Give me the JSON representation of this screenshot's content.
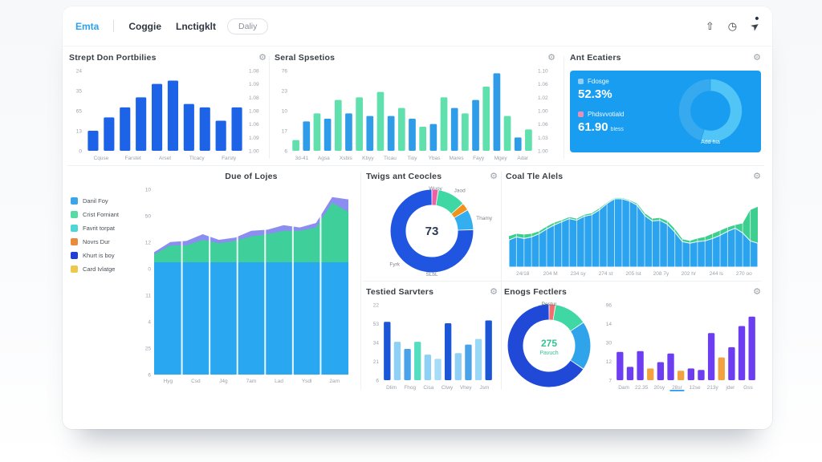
{
  "nav": {
    "tabs": [
      {
        "label": "Emta",
        "active": true
      },
      {
        "label": "Coggie",
        "active": false
      },
      {
        "label": "Lnctigklt",
        "active": false
      }
    ],
    "pill": "Daliy",
    "icons": [
      {
        "name": "share-icon",
        "glyph": "⇧",
        "dot": false
      },
      {
        "name": "history-icon",
        "glyph": "◷",
        "dot": false
      },
      {
        "name": "cursor-icon",
        "glyph": "➤",
        "dot": true
      }
    ]
  },
  "ui": {
    "gear_glyph": "⚙"
  },
  "panels": {
    "strept": {
      "title": "Strept Don Portbilies",
      "chart": {
        "type": "bar",
        "max": 24,
        "values": [
          6,
          10,
          13,
          16,
          20,
          21,
          14,
          13,
          9,
          13
        ],
        "colors": [
          "#1d63e8"
        ],
        "leftTicks": [
          "24",
          "35",
          "65",
          "13",
          "0"
        ],
        "rightTicks": [
          "1.08",
          "1.09",
          "1.08",
          "1.08",
          "1.06",
          "1.09",
          "1.00"
        ],
        "xLabels": [
          "Cquse",
          "Farstet",
          "Arset",
          "Tlcacy",
          "Farsty"
        ]
      }
    },
    "seral": {
      "title": "Seral Spsetios",
      "chart": {
        "type": "bar",
        "max": 30,
        "values": [
          4,
          11,
          14,
          12,
          19,
          14,
          20,
          13,
          22,
          13,
          16,
          12,
          9,
          10,
          20,
          16,
          14,
          19,
          24,
          29,
          13,
          5,
          8
        ],
        "colors": [
          "#5fe0ad",
          "#2f9ce9"
        ],
        "leftTicks": [
          "76",
          "23",
          "10",
          "17",
          "6"
        ],
        "rightTicks": [
          "1.10",
          "1.06",
          "1.02",
          "1.00",
          "1.06",
          "1.03",
          "1.00"
        ],
        "xLabels": [
          "3d-41",
          "Agsa",
          "Xsbis",
          "Kbyy",
          "Tlcau",
          "Tioy",
          "Ybas",
          "Mares",
          "Fayy",
          "Mgey",
          "Adar"
        ]
      }
    },
    "ant": {
      "title": "Ant Ecatiers",
      "card": {
        "bg": "#189df1",
        "stat1_label": "Fdosge",
        "stat1_value": "52.3%",
        "stat1_sq": "rgba(255,255,255,0.55)",
        "stat2_label": "Phdsvvotiald",
        "stat2_value": "61.90",
        "stat2_suffix": "bless",
        "stat2_sq": "#f48fb1",
        "donut_caption": "Add hia",
        "donut": {
          "type": "donut",
          "segments": [
            {
              "value": 55,
              "color": "#52c5f7",
              "label": ""
            },
            {
              "value": 45,
              "color": "#37a9ee",
              "label": ""
            }
          ]
        }
      }
    },
    "due": {
      "title": "Due of Lojes",
      "legend": [
        {
          "label": "Danil Foy",
          "color": "#3aa5e8"
        },
        {
          "label": "Crist Forniant",
          "color": "#57dba5"
        },
        {
          "label": "Favrit torpat",
          "color": "#4fd6d6"
        },
        {
          "label": "Novrs Dur",
          "color": "#ea8a3c"
        },
        {
          "label": "Khurt is boy",
          "color": "#1f3fd8"
        },
        {
          "label": "Card Ivlatge",
          "color": "#ecc94b"
        }
      ],
      "chart": {
        "type": "area",
        "max": 16.5,
        "yTicks": [
          "10",
          "50",
          "12",
          "0",
          "11",
          "4",
          "25",
          "6"
        ],
        "xLabels": [
          "Hyg",
          "Csd",
          "J4g",
          "7am",
          "Lad",
          "Ysdl",
          "2am"
        ],
        "vlines": "slots",
        "layers": [
          {
            "name": "purple",
            "color": "#8b8df0",
            "values": [
              10.9,
              11.8,
              11.9,
              12.5,
              12.0,
              12.2,
              12.8,
              12.9,
              13.3,
              13.1,
              13.5,
              15.8,
              15.6
            ]
          },
          {
            "name": "green",
            "color": "#3ecf9a",
            "values": [
              10.7,
              11.5,
              11.5,
              12.0,
              11.7,
              11.9,
              12.3,
              12.5,
              12.8,
              12.8,
              13.1,
              15.3,
              14.5
            ]
          },
          {
            "name": "blue",
            "color": "#29a7f0",
            "values": [
              10,
              10,
              10,
              10,
              10,
              10,
              10,
              10,
              10,
              10,
              10,
              10,
              10
            ]
          }
        ]
      }
    },
    "twigs": {
      "title": "Twigs ant Ceocles",
      "chart": {
        "type": "donut",
        "center_value": "73",
        "center_color": "#2b3a55",
        "bottom_label": "SLbL",
        "segments": [
          {
            "value": 2.5,
            "color": "#ee5fa8",
            "label": "Wuoy"
          },
          {
            "value": 11,
            "color": "#3fd8a4",
            "label": "Jaod"
          },
          {
            "value": 3,
            "color": "#f2921d",
            "label": ""
          },
          {
            "value": 8,
            "color": "#35aef0",
            "label": "Thamy"
          },
          {
            "value": 75.5,
            "color": "#1f55e0",
            "label": "Fyrk"
          }
        ]
      }
    },
    "coal": {
      "title": "Coal Tle Alels",
      "chart": {
        "type": "area",
        "max": 10,
        "xLabels": [
          "24/18",
          "204 M",
          "234 sy",
          "274 st",
          "205 lst",
          "208 7y",
          "202 hr",
          "244 ls",
          "270 oo"
        ],
        "vlines": "dense",
        "layers": [
          {
            "name": "green",
            "color": "#3ecf90",
            "values": [
              3.9,
              4.2,
              4.1,
              4.2,
              4.5,
              5.1,
              5.6,
              5.9,
              6.3,
              6.1,
              6.6,
              6.8,
              7.4,
              8.1,
              8.7,
              8.7,
              8.4,
              8.0,
              6.8,
              6.1,
              6.2,
              5.8,
              4.8,
              3.5,
              3.3,
              3.6,
              3.8,
              4.2,
              4.6,
              5.0,
              5.3,
              5.5,
              7.2,
              7.6
            ]
          },
          {
            "name": "blue",
            "color": "#2ba3ef",
            "stroke": "#ffffff",
            "values": [
              3.4,
              3.8,
              3.6,
              3.8,
              4.2,
              4.8,
              5.3,
              5.7,
              6.1,
              5.9,
              6.4,
              6.6,
              7.2,
              8.0,
              8.6,
              8.6,
              8.3,
              7.8,
              6.5,
              5.8,
              5.9,
              5.4,
              4.4,
              3.2,
              3.0,
              3.2,
              3.3,
              3.6,
              4.0,
              4.5,
              4.9,
              4.3,
              3.3,
              3.0
            ]
          }
        ]
      }
    },
    "tested": {
      "title": "Testied Sarvters",
      "chart": {
        "type": "bar",
        "max": 53,
        "values": [
          41,
          27,
          22,
          27,
          18,
          15,
          40,
          19,
          25,
          29,
          42
        ],
        "colors": [
          "#1b56d6",
          "#8fd0f6",
          "#4aa3e8",
          "#55dec0",
          "#8fd0f6",
          "#a5ddf8",
          "#1b56d6",
          "#8fd0f6",
          "#4aa3e8",
          "#9bd7f7",
          "#1b56d6"
        ],
        "leftTicks": [
          "22",
          "53",
          "34",
          "21",
          "6"
        ],
        "xLabels": [
          "Dlim",
          "Fhog",
          "Cisa",
          "Ctwy",
          "Vhey",
          "Jsm"
        ]
      }
    },
    "enogs": {
      "title": "Enogs Fectlers",
      "chart": {
        "type": "donut",
        "top_label": "Pestur",
        "center_value": "275",
        "center_sub": "Pavuch",
        "center_color": "#35c391",
        "segments": [
          {
            "value": 2.5,
            "color": "#f26d6d",
            "label": ""
          },
          {
            "value": 13,
            "color": "#3fd8a4",
            "label": ""
          },
          {
            "value": 19,
            "color": "#2fa4ea",
            "label": ""
          },
          {
            "value": 65.5,
            "color": "#2149d8",
            "label": ""
          }
        ]
      }
    },
    "purple": {
      "title": "",
      "chart": {
        "type": "bar",
        "max": 96,
        "values": [
          36,
          17,
          37,
          15,
          23,
          34,
          12,
          15,
          13,
          60,
          29,
          42,
          69,
          81
        ],
        "colors": [
          "#6d3df2",
          "#6d3df2",
          "#6d3df2",
          "#f2a23e",
          "#6d3df2",
          "#6d3df2",
          "#f2a23e",
          "#6d3df2",
          "#6d3df2",
          "#6d3df2",
          "#f2a23e",
          "#6d3df2",
          "#6d3df2",
          "#6d3df2"
        ],
        "leftTicks": [
          "96",
          "14",
          "30",
          "12",
          "7"
        ],
        "xLabels": [
          "Dam",
          "22.35",
          "20sy",
          "28sr",
          "12se",
          "213y",
          "jder",
          "Gss"
        ],
        "underlineIndex": 3,
        "underlineColor": "#2d9cf0"
      }
    }
  }
}
